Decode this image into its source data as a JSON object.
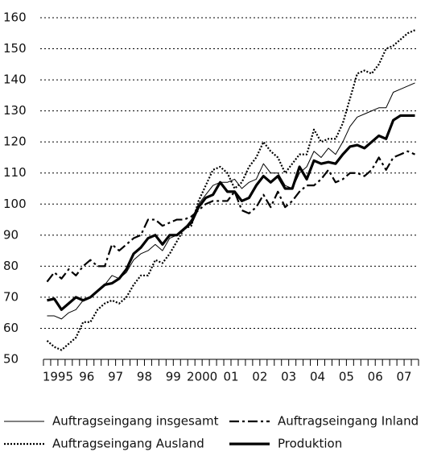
{
  "chart_data": {
    "type": "line",
    "categories": [
      null,
      "1995",
      null,
      null,
      null,
      "96",
      null,
      null,
      null,
      "97",
      null,
      null,
      null,
      "98",
      null,
      null,
      null,
      "99",
      null,
      null,
      null,
      "2000",
      null,
      null,
      null,
      "01",
      null,
      null,
      null,
      "02",
      null,
      null,
      null,
      "03",
      null,
      null,
      null,
      "04",
      null,
      null,
      null,
      "05",
      null,
      null,
      null,
      "06",
      null,
      null,
      null,
      "07",
      null,
      null
    ],
    "series": [
      {
        "name": "Auftragseingang insgesamt",
        "color": "#000000",
        "line_style": "thin",
        "values": [
          64,
          64,
          63,
          65,
          66,
          69,
          70,
          72,
          74,
          77,
          76,
          78,
          82,
          84,
          85,
          87,
          85,
          89,
          90,
          92,
          95,
          100,
          103,
          106,
          107,
          107,
          108,
          105,
          107,
          108,
          113,
          110,
          110,
          106,
          105,
          110,
          112,
          117,
          115,
          118,
          116,
          120,
          125,
          128,
          129,
          130,
          131,
          131,
          136,
          137,
          138,
          139
        ]
      },
      {
        "name": "Auftragseingang Inland",
        "color": "#000000",
        "line_style": "dashdot",
        "values": [
          75,
          78,
          76,
          79,
          77,
          80,
          82,
          80,
          80,
          87,
          85,
          87,
          89,
          90,
          95,
          95,
          93,
          94,
          95,
          95,
          96,
          98,
          100,
          101,
          101,
          101,
          104,
          98,
          97,
          99,
          103,
          99,
          104,
          99,
          101,
          104,
          106,
          106,
          108,
          111,
          107,
          108,
          110,
          110,
          109,
          111,
          115,
          111,
          115,
          116,
          117,
          116
        ]
      },
      {
        "name": "Auftragseingang Ausland",
        "color": "#000000",
        "line_style": "dotted",
        "values": [
          56,
          54,
          53,
          55,
          57,
          62,
          62,
          66,
          68,
          69,
          68,
          70,
          74,
          77,
          77,
          82,
          81,
          84,
          88,
          92,
          93,
          101,
          106,
          111,
          112,
          110,
          105,
          107,
          112,
          115,
          120,
          117,
          115,
          110,
          113,
          116,
          116,
          124,
          120,
          121,
          121,
          126,
          134,
          142,
          143,
          142,
          145,
          150,
          151,
          153,
          155,
          156
        ]
      },
      {
        "name": "Produktion",
        "color": "#000000",
        "line_style": "thick",
        "values": [
          69,
          69.5,
          66,
          68,
          70,
          69,
          70,
          72,
          74,
          74.5,
          76,
          79,
          84,
          86,
          89,
          90,
          87,
          90,
          90,
          92,
          94,
          99,
          102,
          103,
          107,
          104,
          104,
          101,
          102,
          106,
          109,
          107,
          109,
          105,
          105,
          112,
          108,
          114,
          113,
          113.5,
          113,
          116,
          118.5,
          119,
          118,
          120,
          122,
          121,
          127,
          128.5,
          128.5,
          128.5
        ]
      }
    ],
    "ylim": [
      50,
      160
    ],
    "yticks": [
      50,
      60,
      70,
      80,
      90,
      100,
      110,
      120,
      130,
      140,
      150,
      160
    ],
    "grid": true
  }
}
